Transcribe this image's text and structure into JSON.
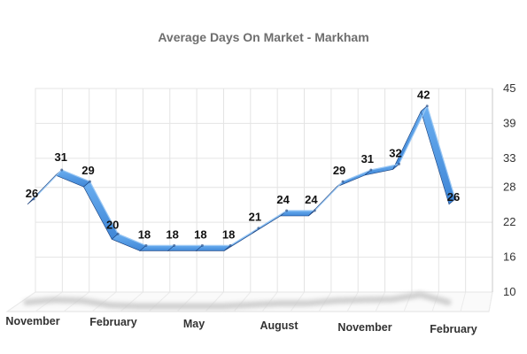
{
  "chart_data": {
    "type": "line",
    "title": "Average Days On Market - Markham",
    "xlabel": "",
    "ylabel": "",
    "ylim": [
      10,
      45
    ],
    "y_ticks": [
      10,
      16,
      22,
      28,
      33,
      39,
      45
    ],
    "x_tick_labels": [
      "November",
      "February",
      "May",
      "August",
      "November",
      "February"
    ],
    "categories": [
      "",
      "",
      "",
      "",
      "",
      "",
      "",
      "",
      "",
      "",
      "",
      "",
      "",
      "",
      "",
      ""
    ],
    "series": [
      {
        "values": [
          26,
          31,
          29,
          20,
          18,
          18,
          18,
          18,
          21,
          24,
          24,
          29,
          31,
          32,
          42,
          26
        ]
      }
    ],
    "data_labels": [
      "26",
      "31",
      "29",
      "20",
      "18",
      "18",
      "18",
      "18",
      "21",
      "24",
      "24",
      "29",
      "31",
      "32",
      "42",
      "26"
    ],
    "grid": true,
    "line_color": "#3f86d6",
    "line_dark_color": "#1a3f7a"
  }
}
